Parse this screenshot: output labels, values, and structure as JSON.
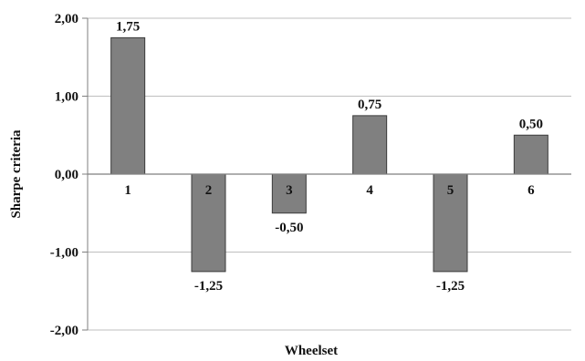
{
  "chart_data": {
    "type": "bar",
    "categories": [
      "1",
      "2",
      "3",
      "4",
      "5",
      "6"
    ],
    "values": [
      1.75,
      -1.25,
      -0.5,
      0.75,
      -1.25,
      0.5
    ],
    "data_labels": [
      "1,75",
      "-1,25",
      "-0,50",
      "0,75",
      "-1,25",
      "0,50"
    ],
    "xlabel": "Wheelset",
    "ylabel": "Sharpe criteria",
    "ylim": [
      -2,
      2
    ],
    "yticks": [
      2,
      1,
      0,
      -1,
      -2
    ],
    "ytick_labels": [
      "2,00",
      "1,00",
      "0,00",
      "-1,00",
      "-2,00"
    ],
    "grid": true,
    "legend": "none",
    "colors": {
      "bar_fill": "#808080",
      "bar_stroke": "#3a3a3a",
      "grid": "#bfbfbf",
      "axis": "#7f7f7f"
    }
  }
}
